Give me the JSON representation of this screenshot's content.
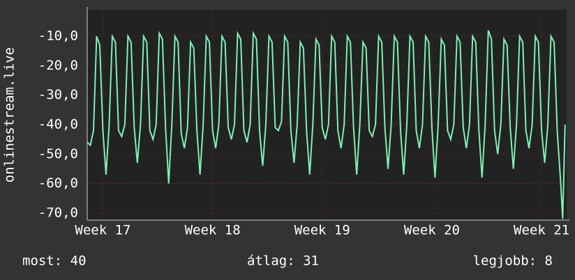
{
  "chart_data": {
    "type": "line",
    "ylabel": "onlinestream.live",
    "x": [
      0,
      0.2,
      0.4,
      0.6,
      0.8,
      1,
      1.2,
      1.4,
      1.6,
      1.8,
      2,
      2.2,
      2.4,
      2.6,
      2.8,
      3,
      3.2,
      3.4,
      3.6,
      3.8,
      4,
      4.2,
      4.4,
      4.6,
      4.8,
      5,
      5.2,
      5.4,
      5.6,
      5.8,
      6,
      6.2,
      6.4,
      6.6,
      6.8,
      7,
      7.2,
      7.4,
      7.6,
      7.8,
      8,
      8.2,
      8.4,
      8.6,
      8.8,
      9,
      9.2,
      9.4,
      9.6,
      9.8,
      10,
      10.2,
      10.4,
      10.6,
      10.8,
      11,
      11.2,
      11.4,
      11.6,
      11.8,
      12,
      12.2,
      12.4,
      12.6,
      12.8,
      13,
      13.2,
      13.4,
      13.6,
      13.8,
      14,
      14.2,
      14.4,
      14.6,
      14.8,
      15,
      15.2,
      15.4,
      15.6,
      15.8,
      16,
      16.2,
      16.4,
      16.6,
      16.8,
      17,
      17.2,
      17.4,
      17.6,
      17.8,
      18,
      18.2,
      18.4,
      18.6,
      18.8,
      19,
      19.2,
      19.4,
      19.6,
      19.8,
      20,
      20.2,
      20.4,
      20.6,
      20.8,
      21,
      21.2,
      21.4,
      21.6,
      21.8,
      22,
      22.2,
      22.4,
      22.6,
      22.8,
      23,
      23.2,
      23.4,
      23.6,
      23.8,
      24,
      24.2,
      24.4,
      24.6,
      24.8,
      25,
      25.2,
      25.4,
      25.6,
      25.8,
      26,
      26.2,
      26.4,
      26.6,
      26.8,
      27,
      27.2,
      27.4,
      27.6,
      27.8,
      28,
      28.2,
      28.4,
      28.6,
      28.8,
      29,
      29.2,
      29.4,
      29.6,
      29.8,
      30,
      30.2,
      30.35,
      30.5
    ],
    "series": [
      {
        "color": "#7ff0b4",
        "values": [
          -46,
          -47,
          -42,
          -10,
          -13,
          -42,
          -57,
          -40,
          -10,
          -12,
          -42,
          -44,
          -40,
          -10,
          -12,
          -41,
          -53,
          -40,
          -10,
          -12,
          -42,
          -45,
          -40,
          -9,
          -11,
          -41,
          -60,
          -40,
          -10,
          -12,
          -43,
          -48,
          -41,
          -12,
          -14,
          -42,
          -57,
          -40,
          -10,
          -12,
          -42,
          -48,
          -40,
          -10,
          -12,
          -41,
          -45,
          -40,
          -9,
          -11,
          -42,
          -46,
          -40,
          -9,
          -11,
          -42,
          -54,
          -40,
          -10,
          -12,
          -41,
          -42,
          -39,
          -10,
          -12,
          -42,
          -53,
          -40,
          -12,
          -14,
          -42,
          -57,
          -40,
          -11,
          -13,
          -41,
          -45,
          -40,
          -10,
          -12,
          -42,
          -48,
          -40,
          -10,
          -12,
          -41,
          -57,
          -40,
          -12,
          -14,
          -42,
          -44,
          -40,
          -10,
          -12,
          -41,
          -55,
          -40,
          -10,
          -12,
          -42,
          -57,
          -40,
          -10,
          -12,
          -42,
          -48,
          -40,
          -10,
          -12,
          -41,
          -58,
          -40,
          -11,
          -13,
          -42,
          -45,
          -40,
          -10,
          -12,
          -41,
          -48,
          -40,
          -10,
          -12,
          -42,
          -58,
          -40,
          -8,
          -11,
          -42,
          -50,
          -40,
          -11,
          -13,
          -41,
          -55,
          -40,
          -10,
          -12,
          -42,
          -48,
          -40,
          -10,
          -12,
          -42,
          -53,
          -40,
          -10,
          -12,
          -42,
          -58,
          -72,
          -40
        ]
      }
    ],
    "xlim": [
      0,
      30.6
    ],
    "xticks": [
      {
        "value": 1,
        "label": "Week 17"
      },
      {
        "value": 8,
        "label": "Week 18"
      },
      {
        "value": 15,
        "label": "Week 19"
      },
      {
        "value": 22,
        "label": "Week 20"
      },
      {
        "value": 29,
        "label": "Week 21"
      }
    ],
    "ylim": [
      -72.4,
      -1
    ],
    "yticks": [
      {
        "value": -70,
        "label": "-70,0"
      },
      {
        "value": -60,
        "label": "-60,0"
      },
      {
        "value": -50,
        "label": "-50,0"
      },
      {
        "value": -40,
        "label": "-40,0"
      },
      {
        "value": -30,
        "label": "-30,0"
      },
      {
        "value": -20,
        "label": "-20,0"
      },
      {
        "value": -10,
        "label": "-10,0"
      }
    ],
    "grid": true,
    "footer": [
      "most: 40",
      "átlag: 31",
      "legjobb: 8"
    ]
  }
}
